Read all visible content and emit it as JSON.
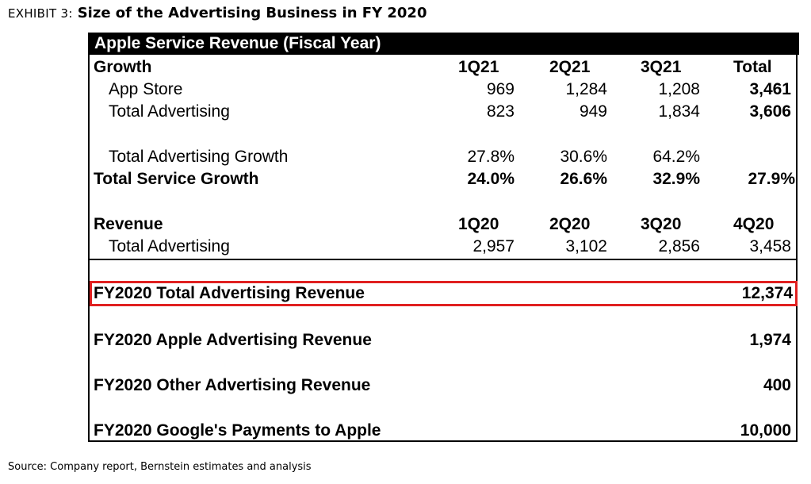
{
  "exhibit": {
    "label": "EXHIBIT 3:",
    "title": "Size of the Advertising Business in FY 2020"
  },
  "table": {
    "header": "Apple Service Revenue (Fiscal Year)",
    "growth_header": {
      "label": "Growth",
      "cols": [
        "1Q21",
        "2Q21",
        "3Q21",
        "Total"
      ]
    },
    "app_store": {
      "label": "App Store",
      "values": [
        "969",
        "1,284",
        "1,208",
        "3,461"
      ]
    },
    "total_advertising_growth_section": {
      "label": "Total Advertising",
      "values": [
        "823",
        "949",
        "1,834",
        "3,606"
      ]
    },
    "ad_growth": {
      "label": "Total Advertising Growth",
      "values": [
        "27.8%",
        "30.6%",
        "64.2%"
      ]
    },
    "service_growth": {
      "label": "Total Service Growth",
      "values": [
        "24.0%",
        "26.6%",
        "32.9%",
        "27.9%"
      ]
    },
    "revenue_header": {
      "label": "Revenue",
      "cols": [
        "1Q20",
        "2Q20",
        "3Q20",
        "4Q20"
      ]
    },
    "revenue_advertising": {
      "label": "Total Advertising",
      "values": [
        "2,957",
        "3,102",
        "2,856",
        "3,458"
      ]
    },
    "fy_total_ad": {
      "label": "FY2020 Total Advertising Revenue",
      "value": "12,374"
    },
    "fy_apple_ad": {
      "label": "FY2020 Apple Advertising Revenue",
      "value": "1,974"
    },
    "fy_other_ad": {
      "label": "FY2020 Other Advertising Revenue",
      "value": "400"
    },
    "fy_google": {
      "label": "FY2020 Google's Payments to Apple",
      "value": "10,000"
    }
  },
  "source": "Source: Company report, Bernstein estimates and analysis",
  "colors": {
    "highlight": "#e02020",
    "header_bg": "#000000"
  }
}
